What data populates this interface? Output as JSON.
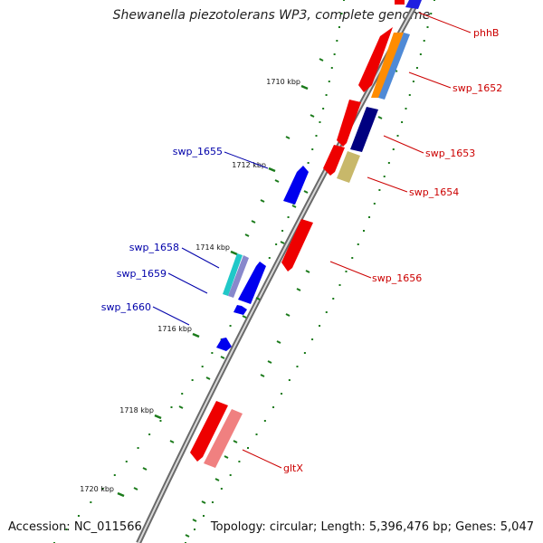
{
  "title": "Shewanella piezotolerans WP3, complete genome",
  "accession": "Accession: NC_011566",
  "stats": "Topology: circular; Length: 5,396,476 bp; Genes: 5,047",
  "colors": {
    "forward_label": "#cc0000",
    "reverse_label": "#0000aa",
    "tick": "#1a7a1a",
    "backbone": "#777777"
  },
  "ticks": [
    {
      "label": "1710 kbp"
    },
    {
      "label": "1712 kbp"
    },
    {
      "label": "1714 kbp"
    },
    {
      "label": "1716 kbp"
    },
    {
      "label": "1718 kbp"
    },
    {
      "label": "1720 kbp"
    }
  ],
  "gene_labels": [
    {
      "name": "phhB",
      "strand": "forward"
    },
    {
      "name": "swp_1652",
      "strand": "forward"
    },
    {
      "name": "swp_1653",
      "strand": "forward"
    },
    {
      "name": "swp_1654",
      "strand": "forward"
    },
    {
      "name": "swp_1656",
      "strand": "forward"
    },
    {
      "name": "gltX",
      "strand": "forward"
    },
    {
      "name": "swp_1655",
      "strand": "reverse"
    },
    {
      "name": "swp_1658",
      "strand": "reverse"
    },
    {
      "name": "swp_1659",
      "strand": "reverse"
    },
    {
      "name": "swp_1660",
      "strand": "reverse"
    }
  ]
}
